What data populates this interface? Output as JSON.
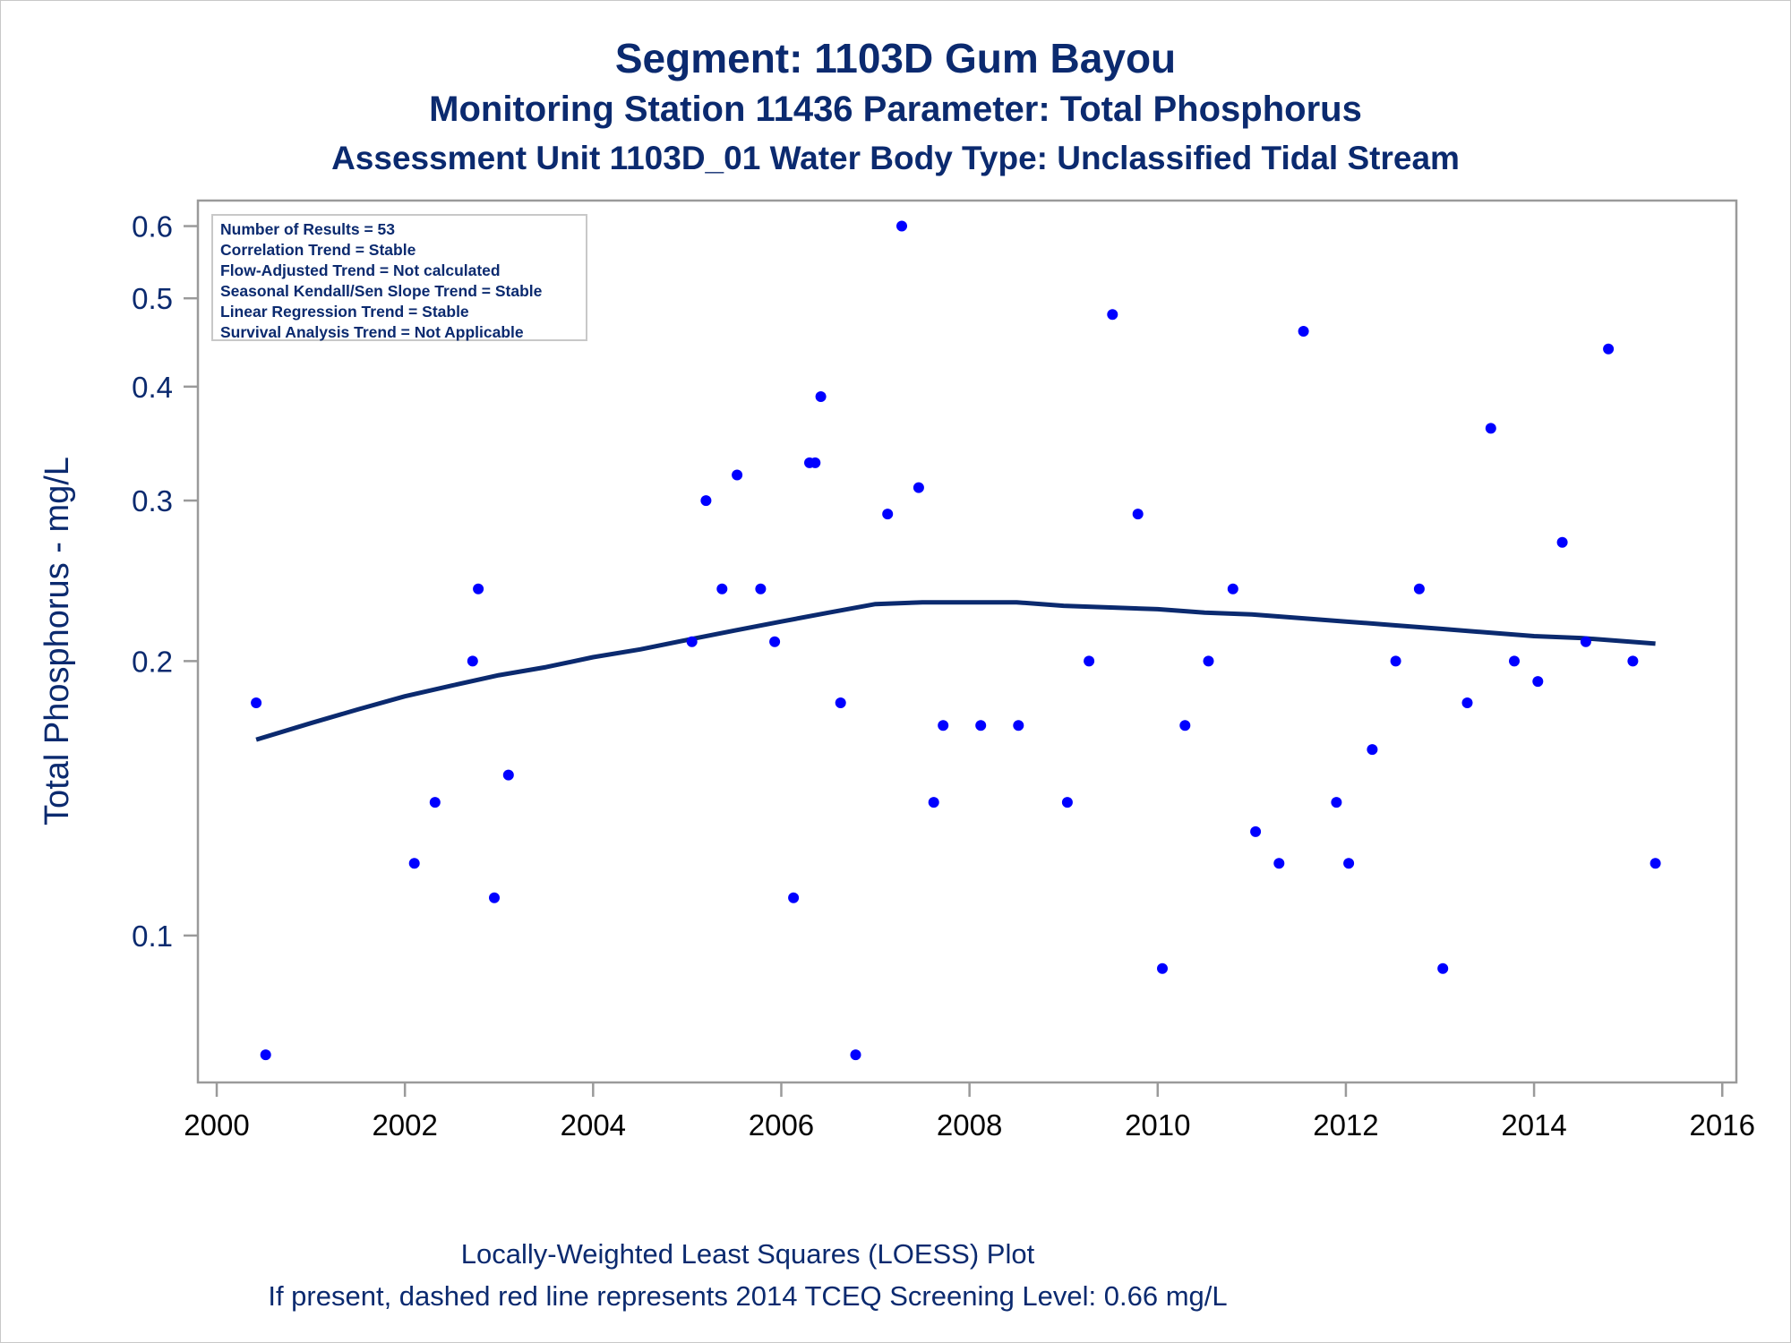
{
  "titles": {
    "line1": "Segment: 1103D  Gum Bayou",
    "line2": "Monitoring Station 11436 Parameter: Total Phosphorus",
    "line3": "Assessment Unit 1103D_01   Water Body Type: Unclassified Tidal Stream"
  },
  "stats_box": [
    "Number of Results = 53",
    "Correlation Trend = Stable",
    "Flow-Adjusted Trend = Not calculated",
    "Seasonal Kendall/Sen Slope Trend = Stable",
    "Linear Regression Trend = Stable",
    "Survival Analysis Trend = Not Applicable"
  ],
  "footer": {
    "line1": "Locally-Weighted Least Squares (LOESS) Plot",
    "line2": "If present, dashed red line represents 2014 TCEQ Screening Level: 0.66 mg/L"
  },
  "colors": {
    "text": "#0b2a6f",
    "points": "#0000ff",
    "loess_line": "#0b2a6f",
    "axis": "#9a9a9a"
  },
  "chart_data": {
    "type": "scatter",
    "ylabel": "Total Phosphorus - mg/L",
    "xlabel": "",
    "y_scale": "log",
    "xlim": [
      1999.8,
      2016.15
    ],
    "ylim": [
      0.069,
      0.64
    ],
    "x_ticks": [
      2000,
      2002,
      2004,
      2006,
      2008,
      2010,
      2012,
      2014,
      2016
    ],
    "y_ticks": [
      0.1,
      0.2,
      0.3,
      0.4,
      0.5,
      0.6
    ],
    "points": [
      [
        2000.42,
        0.18
      ],
      [
        2000.52,
        0.074
      ],
      [
        2002.1,
        0.12
      ],
      [
        2002.32,
        0.14
      ],
      [
        2002.72,
        0.2
      ],
      [
        2002.78,
        0.24
      ],
      [
        2002.95,
        0.11
      ],
      [
        2003.1,
        0.15
      ],
      [
        2005.05,
        0.21
      ],
      [
        2005.2,
        0.3
      ],
      [
        2005.37,
        0.24
      ],
      [
        2005.53,
        0.32
      ],
      [
        2005.78,
        0.24
      ],
      [
        2005.93,
        0.21
      ],
      [
        2006.13,
        0.11
      ],
      [
        2006.3,
        0.33
      ],
      [
        2006.36,
        0.33
      ],
      [
        2006.42,
        0.39
      ],
      [
        2006.63,
        0.18
      ],
      [
        2006.79,
        0.074
      ],
      [
        2007.13,
        0.29
      ],
      [
        2007.28,
        0.6
      ],
      [
        2007.46,
        0.31
      ],
      [
        2007.62,
        0.14
      ],
      [
        2007.72,
        0.17
      ],
      [
        2008.12,
        0.17
      ],
      [
        2008.52,
        0.17
      ],
      [
        2009.04,
        0.14
      ],
      [
        2009.27,
        0.2
      ],
      [
        2009.52,
        0.48
      ],
      [
        2009.79,
        0.29
      ],
      [
        2010.05,
        0.092
      ],
      [
        2010.29,
        0.17
      ],
      [
        2010.54,
        0.2
      ],
      [
        2010.8,
        0.24
      ],
      [
        2011.04,
        0.13
      ],
      [
        2011.29,
        0.12
      ],
      [
        2011.55,
        0.46
      ],
      [
        2011.9,
        0.14
      ],
      [
        2012.03,
        0.12
      ],
      [
        2012.28,
        0.16
      ],
      [
        2012.53,
        0.2
      ],
      [
        2012.78,
        0.24
      ],
      [
        2013.03,
        0.092
      ],
      [
        2013.29,
        0.18
      ],
      [
        2013.54,
        0.36
      ],
      [
        2013.79,
        0.2
      ],
      [
        2014.04,
        0.19
      ],
      [
        2014.3,
        0.27
      ],
      [
        2014.55,
        0.21
      ],
      [
        2014.79,
        0.44
      ],
      [
        2015.05,
        0.2
      ],
      [
        2015.29,
        0.12
      ]
    ],
    "loess": [
      [
        2000.42,
        0.164
      ],
      [
        2001.0,
        0.171
      ],
      [
        2001.5,
        0.177
      ],
      [
        2002.0,
        0.183
      ],
      [
        2002.5,
        0.188
      ],
      [
        2003.0,
        0.193
      ],
      [
        2003.5,
        0.197
      ],
      [
        2004.0,
        0.202
      ],
      [
        2004.5,
        0.206
      ],
      [
        2005.0,
        0.211
      ],
      [
        2005.5,
        0.216
      ],
      [
        2006.0,
        0.221
      ],
      [
        2006.5,
        0.226
      ],
      [
        2007.0,
        0.231
      ],
      [
        2007.5,
        0.232
      ],
      [
        2008.0,
        0.232
      ],
      [
        2008.5,
        0.232
      ],
      [
        2009.0,
        0.23
      ],
      [
        2009.5,
        0.229
      ],
      [
        2010.0,
        0.228
      ],
      [
        2010.5,
        0.226
      ],
      [
        2011.0,
        0.225
      ],
      [
        2011.5,
        0.223
      ],
      [
        2012.0,
        0.221
      ],
      [
        2012.5,
        0.219
      ],
      [
        2013.0,
        0.217
      ],
      [
        2013.5,
        0.215
      ],
      [
        2014.0,
        0.213
      ],
      [
        2014.5,
        0.212
      ],
      [
        2015.29,
        0.209
      ]
    ]
  }
}
